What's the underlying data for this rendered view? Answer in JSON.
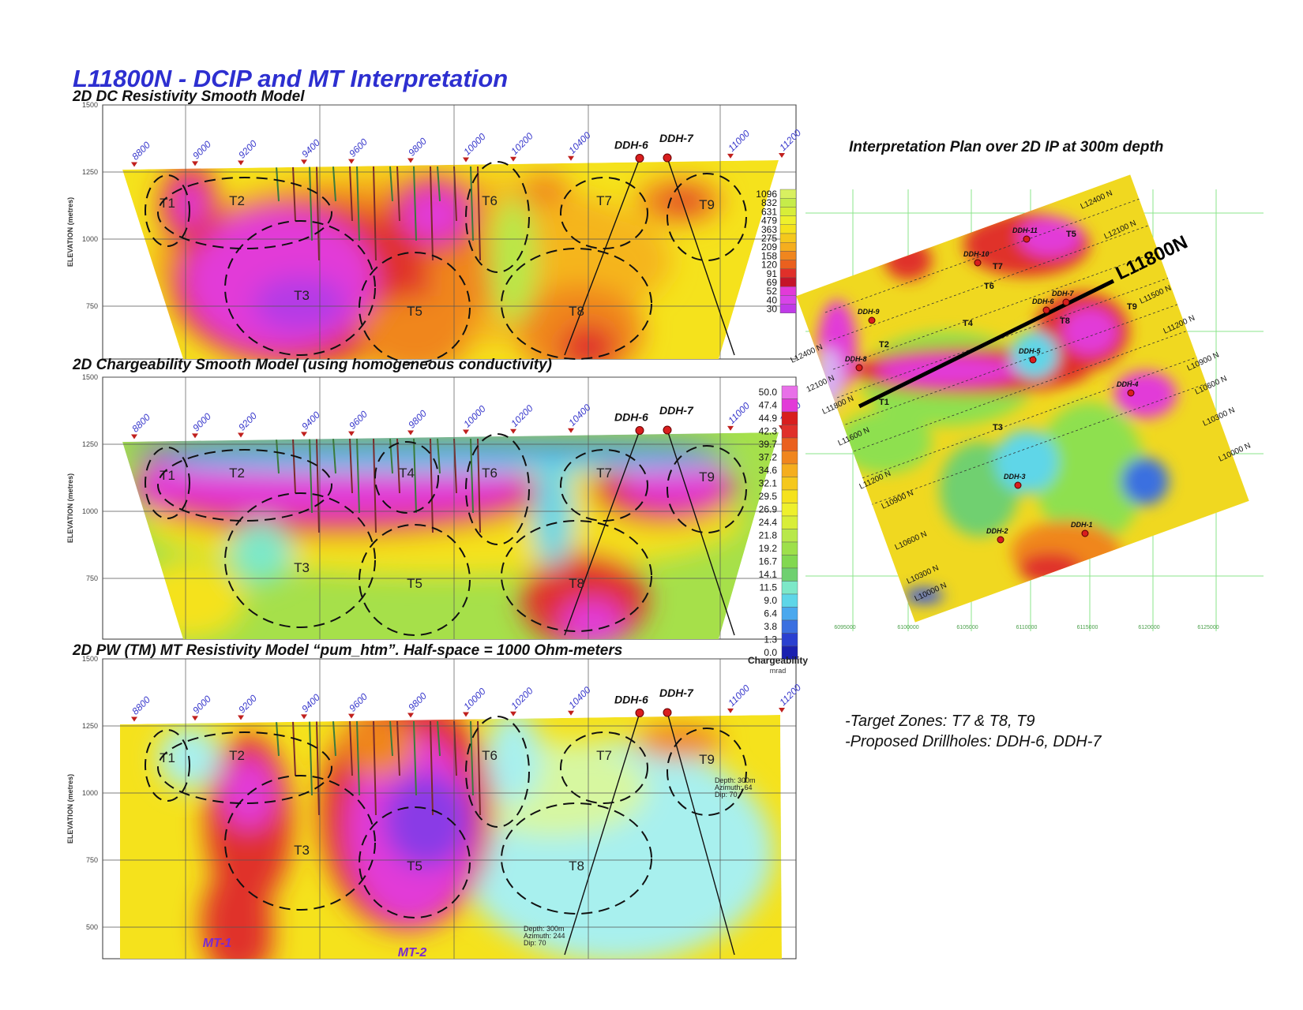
{
  "title": "L11800N - DCIP and MT Interpretation",
  "stations": [
    "8800",
    "9000",
    "9200",
    "9400",
    "9600",
    "9800",
    "10000",
    "10200",
    "10400",
    "11000",
    "11200"
  ],
  "drillholes": [
    "DDH-6",
    "DDH-7"
  ],
  "elevation_label": "ELEVATION (metres)",
  "panels": [
    {
      "title": "2D DC Resistivity Smooth  Model",
      "elevation_ticks": [
        1500,
        1250,
        1000,
        750
      ],
      "targets": [
        "T1",
        "T2",
        "T3",
        "T5",
        "T6",
        "T7",
        "T8",
        "T9"
      ]
    },
    {
      "title": "2D Chargeability Smooth Model (using homogeneous conductivity)",
      "elevation_ticks": [
        1500,
        1250,
        1000,
        750
      ],
      "targets": [
        "T1",
        "T2",
        "T3",
        "T4",
        "T5",
        "T6",
        "T7",
        "T8",
        "T9"
      ]
    },
    {
      "title": "2D PW (TM) MT Resistivity Model “pum_htm”. Half-space = 1000 Ohm-meters",
      "elevation_ticks": [
        1500,
        1250,
        1000,
        750,
        500
      ],
      "targets": [
        "T1",
        "T2",
        "T3",
        "T5",
        "T6",
        "T7",
        "T8",
        "T9"
      ],
      "anomalies": [
        "MT-1",
        "MT-2"
      ],
      "drill_notes": [
        [
          "Depth: 300m",
          "Azimuth: 244",
          "Dip: 70"
        ],
        [
          "Depth: 300m",
          "Azimuth: 64",
          "Dip: 70"
        ]
      ]
    }
  ],
  "resistivity_scale": [
    "1096",
    "832",
    "631",
    "479",
    "363",
    "275",
    "209",
    "158",
    "120",
    "91",
    "69",
    "52",
    "40",
    "30"
  ],
  "chargeability_scale": {
    "values": [
      "50.0",
      "47.4",
      "44.9",
      "42.3",
      "39.7",
      "37.2",
      "34.6",
      "32.1",
      "29.5",
      "26.9",
      "24.4",
      "21.8",
      "19.2",
      "16.7",
      "14.1",
      "11.5",
      "9.0",
      "6.4",
      "3.8",
      "1.3",
      "0.0"
    ],
    "label": "Chargeability",
    "unit": "mrad"
  },
  "plan": {
    "title": "Interpretation Plan over 2D IP at 300m depth",
    "section_label": "L11800N",
    "west_lines": [
      "L12400 N",
      "12100 N",
      "L11800 N",
      "L11600 N",
      "L11200 N",
      "L10900 N",
      "L10600 N",
      "L10300 N",
      "L10000 N"
    ],
    "east_lines": [
      "L12400 N",
      "L12100 N",
      "L11500 N",
      "L11200 N",
      "L10900 N",
      "L10600 N",
      "L10300 N",
      "L10000 N"
    ],
    "drillholes": [
      "DDH-11",
      "DDH-10",
      "DDH-9",
      "DDH-8",
      "DDH-7",
      "DDH-6",
      "DDH-5",
      "DDH-4",
      "DDH-3",
      "DDH-2",
      "DDH-1"
    ],
    "targets": [
      "T1",
      "T2",
      "T3",
      "T4",
      "T5",
      "T6",
      "T7",
      "T8",
      "T9"
    ],
    "eastings": [
      "6095000",
      "6100000",
      "6105000",
      "6110000",
      "6115000",
      "6120000",
      "6125000"
    ]
  },
  "notes": [
    "-Target Zones: T7 & T8, T9",
    "-Proposed Drillholes: DDH-6, DDH-7"
  ]
}
